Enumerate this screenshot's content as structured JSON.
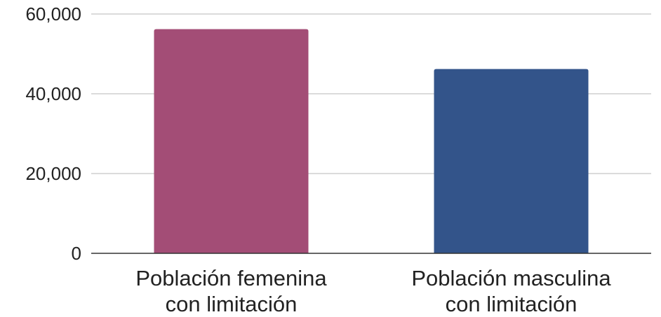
{
  "chart_data": {
    "type": "bar",
    "categories": [
      [
        "Población femenina",
        "con limitación"
      ],
      [
        "Población masculina",
        "con limitación"
      ]
    ],
    "values": [
      56200,
      46200
    ],
    "bar_colors": [
      "#a34d76",
      "#33548a"
    ],
    "ylim": [
      0,
      60000
    ],
    "yticks": [
      0,
      20000,
      40000,
      60000
    ],
    "ytick_labels": [
      "0",
      "20,000",
      "40,000",
      "60,000"
    ],
    "grid": true,
    "legend": "none"
  }
}
